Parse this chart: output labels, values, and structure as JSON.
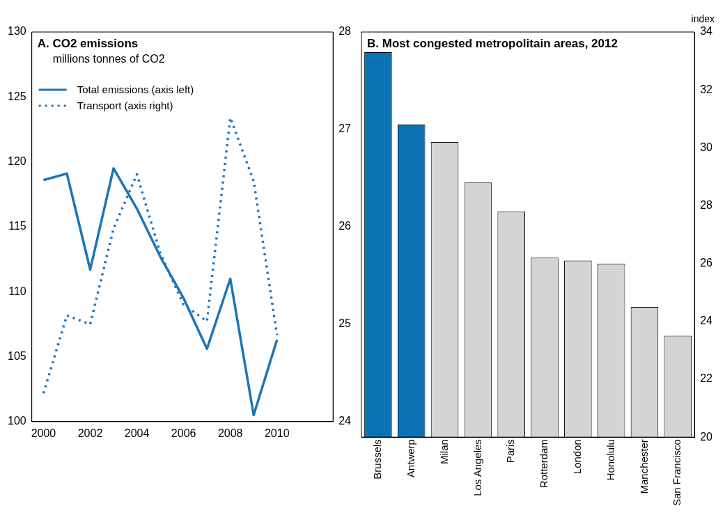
{
  "chart_data": [
    {
      "type": "line",
      "title": "A. CO2 emissions",
      "subtitle": "millions tonnes of CO2",
      "x": [
        2000,
        2001,
        2002,
        2003,
        2004,
        2005,
        2006,
        2007,
        2008,
        2009,
        2010
      ],
      "xlim": [
        1999.5,
        2012.4
      ],
      "xticks": [
        2000,
        2002,
        2004,
        2006,
        2008,
        2010
      ],
      "ylim": [
        100,
        130
      ],
      "yticks": [
        100,
        105,
        110,
        115,
        120,
        125,
        130
      ],
      "y2lim": [
        24,
        28
      ],
      "y2ticks": [
        24,
        25,
        26,
        27,
        28
      ],
      "legend": "top left",
      "grid": false,
      "marker": "none",
      "series": [
        {
          "name": "Total emissions (axis left)",
          "color": "#1a75bb",
          "line_style": "solid",
          "values": [
            118.6,
            119.1,
            111.7,
            119.5,
            116.4,
            112.7,
            109.5,
            105.6,
            111.0,
            100.5,
            106.3
          ]
        },
        {
          "name": "Transport (axis right)",
          "color": "#1a75bb",
          "line_style": "dotted",
          "axis": "y2",
          "values": [
            24.29,
            25.09,
            25.0,
            25.98,
            26.54,
            25.73,
            25.2,
            25.03,
            27.12,
            26.47,
            24.89
          ]
        }
      ]
    },
    {
      "type": "bar",
      "title": "B. Most congested metropolitain areas, 2012",
      "ylabel": "index",
      "categories": [
        "Brussels",
        "Antwerp",
        "Milan",
        "Los Angeles",
        "Paris",
        "Rotterdam",
        "London",
        "Honolulu",
        "Manchester",
        "San Francisco"
      ],
      "values": [
        33.3,
        30.8,
        30.2,
        28.8,
        27.8,
        26.2,
        26.1,
        26.0,
        24.5,
        23.5
      ],
      "colors": [
        "#0b72b5",
        "#0b72b5",
        "#d4d4d4",
        "#d4d4d4",
        "#d4d4d4",
        "#d4d4d4",
        "#d4d4d4",
        "#d4d4d4",
        "#d4d4d4",
        "#d4d4d4"
      ],
      "ylim": [
        20,
        34
      ],
      "yticks": [
        20,
        22,
        24,
        26,
        28,
        30,
        32,
        34
      ],
      "grid": false,
      "legend": false
    }
  ]
}
